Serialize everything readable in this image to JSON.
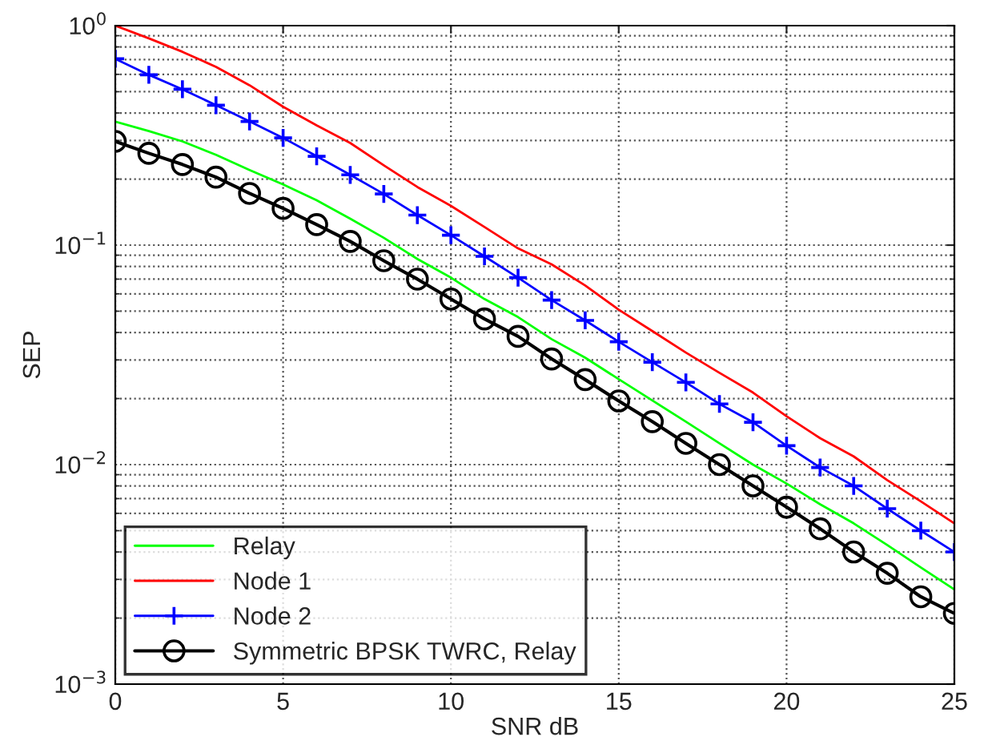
{
  "chart_data": {
    "type": "line",
    "xlabel": "SNR dB",
    "ylabel": "SEP",
    "log": "y",
    "grid": true,
    "legend": "bottom left",
    "x": [
      0,
      1,
      2,
      3,
      4,
      5,
      6,
      7,
      8,
      9,
      10,
      11,
      12,
      13,
      14,
      15,
      16,
      17,
      18,
      19,
      20,
      21,
      22,
      23,
      24,
      25
    ],
    "xlim": [
      0,
      25
    ],
    "xticks": [
      0,
      5,
      10,
      15,
      20,
      25
    ],
    "ylim": [
      0.001,
      1
    ],
    "yticks": [
      {
        "value": 0.001,
        "label": "10$^{−3}$"
      },
      {
        "value": 0.01,
        "label": "10$^{−2}$"
      },
      {
        "value": 0.1,
        "label": "10$^{−1}$"
      },
      {
        "value": 1,
        "label": "10$^{0}$"
      }
    ],
    "series": [
      {
        "name": "Relay",
        "color": "#00ff00",
        "marker": "none",
        "values": [
          0.365,
          0.331,
          0.297,
          0.258,
          0.22,
          0.189,
          0.16,
          0.132,
          0.108,
          0.0865,
          0.0711,
          0.0568,
          0.047,
          0.0373,
          0.0307,
          0.0245,
          0.0196,
          0.0157,
          0.0125,
          0.01,
          0.0082,
          0.0066,
          0.0054,
          0.0043,
          0.0034,
          0.0027
        ]
      },
      {
        "name": "Node 1",
        "color": "#ff0000",
        "marker": "none",
        "values": [
          1.0,
          0.875,
          0.76,
          0.649,
          0.535,
          0.427,
          0.351,
          0.292,
          0.231,
          0.184,
          0.151,
          0.121,
          0.0966,
          0.0817,
          0.0655,
          0.0508,
          0.0406,
          0.0324,
          0.0262,
          0.0213,
          0.0166,
          0.0132,
          0.0109,
          0.0085,
          0.0068,
          0.0054
        ]
      },
      {
        "name": "Node 2",
        "color": "#0000ff",
        "marker": "cross",
        "values": [
          0.706,
          0.597,
          0.513,
          0.434,
          0.366,
          0.308,
          0.254,
          0.209,
          0.171,
          0.137,
          0.111,
          0.0889,
          0.0711,
          0.0562,
          0.0454,
          0.0363,
          0.0293,
          0.0237,
          0.0189,
          0.0156,
          0.0122,
          0.0097,
          0.008,
          0.0063,
          0.005,
          0.004
        ]
      },
      {
        "name": "Symmetric BPSK TWRC, Relay",
        "color": "#000000",
        "marker": "circle",
        "values": [
          0.297,
          0.262,
          0.233,
          0.204,
          0.172,
          0.147,
          0.124,
          0.104,
          0.0849,
          0.07,
          0.0568,
          0.0461,
          0.0384,
          0.0303,
          0.0244,
          0.0195,
          0.0157,
          0.0125,
          0.01,
          0.008,
          0.0064,
          0.0051,
          0.004,
          0.0032,
          0.0025,
          0.0021
        ]
      }
    ]
  }
}
